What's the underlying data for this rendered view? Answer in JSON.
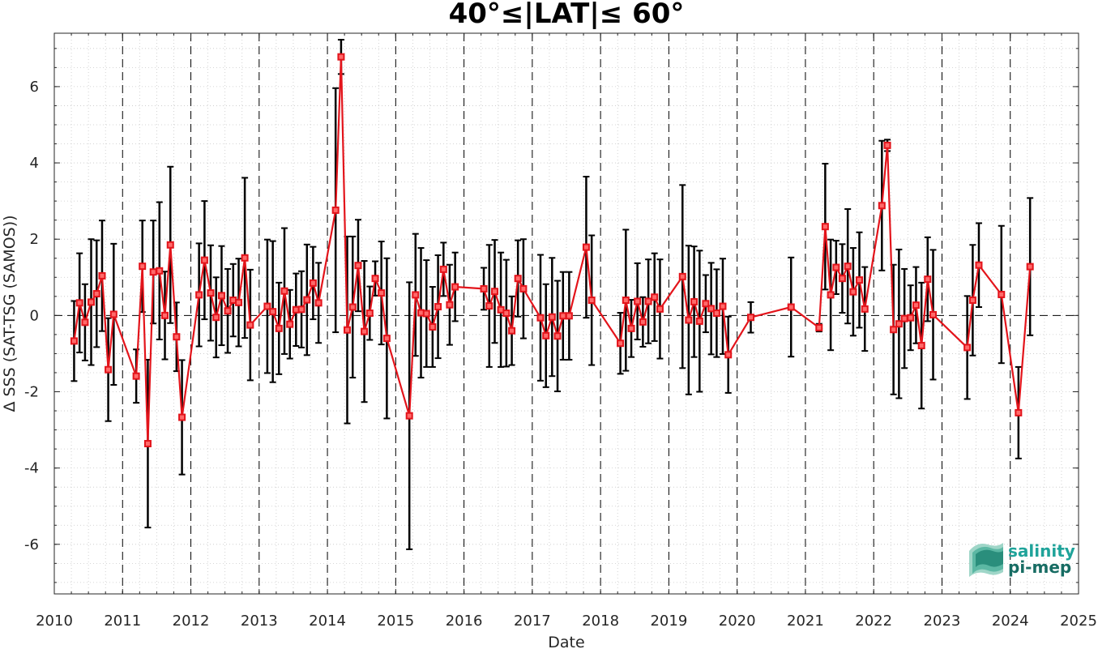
{
  "chart_data": {
    "type": "line",
    "title": "40°≤|LAT|≤ 60°",
    "xlabel": "Date",
    "ylabel": "Δ SSS (SAT-TSG (SAMOS))",
    "xlim": [
      2010,
      2025
    ],
    "ylim": [
      -7.3,
      7.4
    ],
    "x_ticks": [
      "2010",
      "2011",
      "2012",
      "2013",
      "2014",
      "2015",
      "2016",
      "2017",
      "2018",
      "2019",
      "2020",
      "2021",
      "2022",
      "2023",
      "2024",
      "2025"
    ],
    "y_ticks": [
      "-6",
      "-4",
      "-2",
      "0",
      "2",
      "4",
      "6"
    ],
    "grid": "minor dotted",
    "year_separators": "dashed vertical lines at each year start",
    "zero_line": "dashed horizontal line at 0",
    "colors": {
      "series": "#e3141b",
      "errorbar": "#000000",
      "logo": "#1a9a8c"
    },
    "series": [
      {
        "marker": "square",
        "x": [
          2010.29,
          2010.37,
          2010.45,
          2010.54,
          2010.62,
          2010.7,
          2010.79,
          2010.87,
          2011.2,
          2011.29,
          2011.37,
          2011.45,
          2011.54,
          2011.62,
          2011.7,
          2011.79,
          2011.87,
          2012.12,
          2012.2,
          2012.29,
          2012.37,
          2012.45,
          2012.54,
          2012.62,
          2012.7,
          2012.79,
          2012.87,
          2013.12,
          2013.2,
          2013.29,
          2013.37,
          2013.45,
          2013.54,
          2013.62,
          2013.7,
          2013.79,
          2013.87,
          2014.12,
          2014.2,
          2014.29,
          2014.37,
          2014.45,
          2014.54,
          2014.62,
          2014.7,
          2014.79,
          2014.87,
          2015.2,
          2015.29,
          2015.37,
          2015.45,
          2015.54,
          2015.62,
          2015.7,
          2015.79,
          2015.87,
          2016.29,
          2016.37,
          2016.45,
          2016.54,
          2016.62,
          2016.7,
          2016.79,
          2016.87,
          2017.12,
          2017.2,
          2017.29,
          2017.37,
          2017.45,
          2017.54,
          2017.79,
          2017.87,
          2018.29,
          2018.37,
          2018.45,
          2018.54,
          2018.62,
          2018.7,
          2018.79,
          2018.87,
          2019.2,
          2019.29,
          2019.37,
          2019.45,
          2019.54,
          2019.62,
          2019.7,
          2019.79,
          2019.87,
          2020.2,
          2020.79,
          2021.2,
          2021.29,
          2021.37,
          2021.45,
          2021.54,
          2021.62,
          2021.7,
          2021.79,
          2021.87,
          2022.12,
          2022.2,
          2022.29,
          2022.37,
          2022.45,
          2022.54,
          2022.62,
          2022.7,
          2022.79,
          2022.87,
          2023.37,
          2023.45,
          2023.54,
          2023.87,
          2024.12,
          2024.29
        ],
        "y": [
          -0.67,
          0.33,
          -0.18,
          0.35,
          0.57,
          1.04,
          -1.42,
          0.03,
          -1.59,
          1.29,
          -3.36,
          1.14,
          1.17,
          0.0,
          1.85,
          -0.56,
          -2.67,
          0.54,
          1.45,
          0.59,
          -0.05,
          0.52,
          0.12,
          0.4,
          0.34,
          1.51,
          -0.25,
          0.24,
          0.1,
          -0.34,
          0.64,
          -0.23,
          0.15,
          0.16,
          0.41,
          0.85,
          0.33,
          2.76,
          6.78,
          -0.38,
          0.22,
          1.31,
          -0.42,
          0.06,
          0.97,
          0.59,
          -0.6,
          -2.63,
          0.54,
          0.07,
          0.05,
          -0.3,
          0.23,
          1.21,
          0.28,
          0.75,
          0.7,
          0.25,
          0.63,
          0.15,
          0.06,
          -0.4,
          0.97,
          0.7,
          -0.06,
          -0.53,
          -0.04,
          -0.54,
          -0.01,
          -0.01,
          1.79,
          0.4,
          -0.73,
          0.4,
          -0.34,
          0.37,
          -0.17,
          0.37,
          0.48,
          0.17,
          1.02,
          -0.12,
          0.36,
          -0.15,
          0.31,
          0.18,
          0.06,
          0.24,
          -1.03,
          -0.05,
          0.22,
          -0.32,
          2.33,
          0.54,
          1.26,
          0.97,
          1.29,
          0.62,
          0.93,
          0.17,
          2.88,
          4.46,
          -0.37,
          -0.22,
          -0.08,
          -0.06,
          0.27,
          -0.79,
          0.95,
          0.02,
          -0.84,
          0.4,
          1.32,
          0.55,
          -2.55,
          1.28
        ],
        "y_err": [
          1.05,
          1.3,
          1.0,
          1.65,
          1.4,
          1.45,
          1.35,
          1.85,
          0.7,
          1.2,
          2.2,
          1.35,
          1.8,
          1.15,
          2.05,
          0.9,
          1.5,
          1.35,
          1.55,
          1.25,
          1.05,
          1.3,
          1.1,
          0.95,
          1.15,
          2.1,
          1.45,
          1.75,
          1.85,
          1.2,
          1.65,
          0.9,
          0.95,
          1.0,
          1.45,
          0.95,
          1.05,
          3.2,
          0.45,
          2.45,
          1.85,
          1.2,
          1.85,
          0.7,
          0.45,
          1.35,
          2.1,
          3.5,
          1.6,
          1.7,
          1.4,
          1.05,
          1.35,
          0.7,
          1.05,
          0.9,
          0.55,
          1.6,
          1.35,
          1.5,
          1.4,
          0.9,
          1.0,
          1.3,
          1.65,
          1.35,
          1.55,
          1.45,
          1.15,
          1.15,
          1.85,
          1.7,
          0.8,
          1.85,
          0.75,
          1.0,
          0.65,
          1.1,
          1.15,
          1.3,
          2.4,
          1.95,
          1.45,
          1.85,
          0.75,
          1.2,
          1.15,
          1.25,
          1.0,
          0.4,
          1.3,
          0.1,
          1.65,
          1.45,
          0.7,
          0.9,
          1.5,
          1.15,
          1.25,
          1.1,
          1.7,
          0.15,
          1.7,
          1.95,
          1.3,
          0.85,
          1.0,
          1.65,
          1.1,
          1.7,
          1.35,
          1.45,
          1.1,
          1.8,
          1.2,
          1.8
        ]
      }
    ]
  },
  "logo": {
    "line1": "salinity",
    "line2": "pi-mep"
  }
}
